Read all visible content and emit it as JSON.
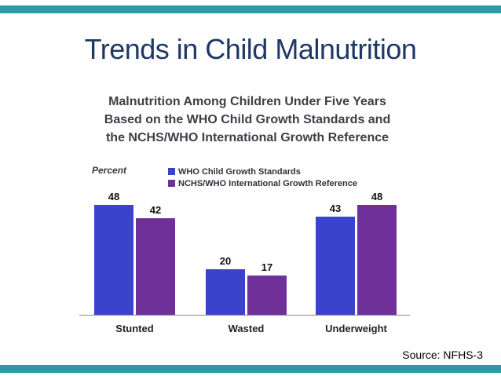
{
  "slide": {
    "title": "Trends in Child Malnutrition",
    "title_color": "#1F3864",
    "accent_band_color": "#2C9AA8",
    "source_note": "Source: NFHS-3"
  },
  "chart_data": {
    "type": "bar",
    "title": "Malnutrition Among Children Under Five Years Based on the WHO Child Growth Standards and the NCHS/WHO International Growth Reference",
    "title_lines": [
      "Malnutrition Among Children Under Five Years",
      "Based on the WHO Child Growth Standards and",
      "the NCHS/WHO International Growth Reference"
    ],
    "ylabel": "Percent",
    "xlabel": "",
    "categories": [
      "Stunted",
      "Wasted",
      "Underweight"
    ],
    "series": [
      {
        "name": "WHO Child Growth Standards",
        "color": "#3B43CC",
        "values": [
          48,
          20,
          43
        ]
      },
      {
        "name": "NCHS/WHO International Growth Reference",
        "color": "#6F3099",
        "values": [
          42,
          17,
          48
        ]
      }
    ],
    "value_labels": true,
    "ylim": [
      0,
      50
    ],
    "grid": false,
    "legend_position": "top"
  }
}
